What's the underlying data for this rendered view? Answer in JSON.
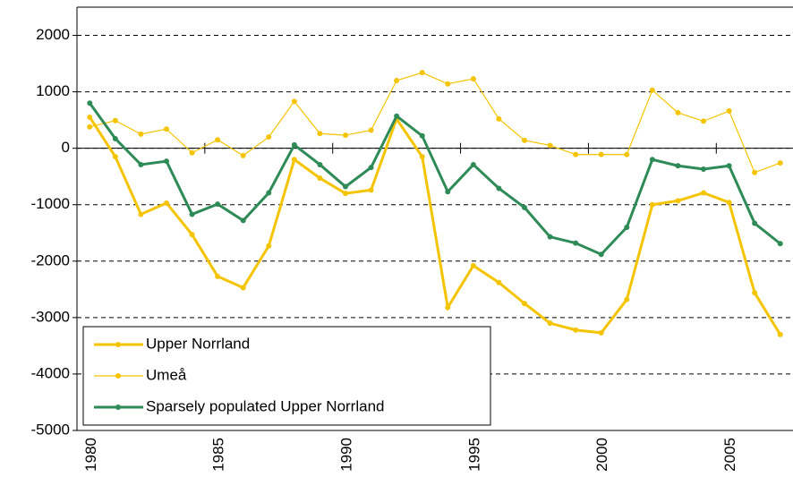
{
  "chart_data": {
    "type": "line",
    "categories": [
      "1980",
      null,
      null,
      null,
      null,
      "1985",
      null,
      null,
      null,
      null,
      "1990",
      null,
      null,
      null,
      null,
      "1995",
      null,
      null,
      null,
      null,
      "2000",
      null,
      null,
      null,
      null,
      "2005",
      null,
      null
    ],
    "series": [
      {
        "name": "Upper Norrland",
        "color": "#f5c400",
        "width": 3,
        "values": [
          550,
          -150,
          -1170,
          -970,
          -1530,
          -2270,
          -2470,
          -1730,
          -200,
          -530,
          -800,
          -740,
          520,
          -150,
          -2820,
          -2080,
          -2380,
          -2750,
          -3100,
          -3220,
          -3270,
          -2680,
          -1000,
          -930,
          -790,
          -960,
          -2560,
          -3300
        ]
      },
      {
        "name": "Umeå",
        "color": "#f5c400",
        "width": 1.2,
        "values": [
          380,
          490,
          250,
          340,
          -80,
          150,
          -130,
          200,
          830,
          260,
          230,
          320,
          1200,
          1340,
          1140,
          1230,
          520,
          140,
          50,
          -110,
          -110,
          -110,
          1030,
          630,
          480,
          660,
          -430,
          -260
        ]
      },
      {
        "name": "Sparsely populated Upper Norrland",
        "color": "#2e8b57",
        "width": 3,
        "values": [
          800,
          170,
          -290,
          -230,
          -1170,
          -990,
          -1280,
          -790,
          60,
          -290,
          -680,
          -340,
          570,
          220,
          -770,
          -290,
          -710,
          -1050,
          -1570,
          -1680,
          -1880,
          -1400,
          -200,
          -310,
          -370,
          -310,
          -1330,
          -1690
        ]
      }
    ],
    "ylim": [
      -5000,
      2500
    ],
    "yticks": [
      -5000,
      -4000,
      -3000,
      -2000,
      -1000,
      0,
      1000,
      2000
    ],
    "grid": true,
    "legend": "lower left"
  }
}
